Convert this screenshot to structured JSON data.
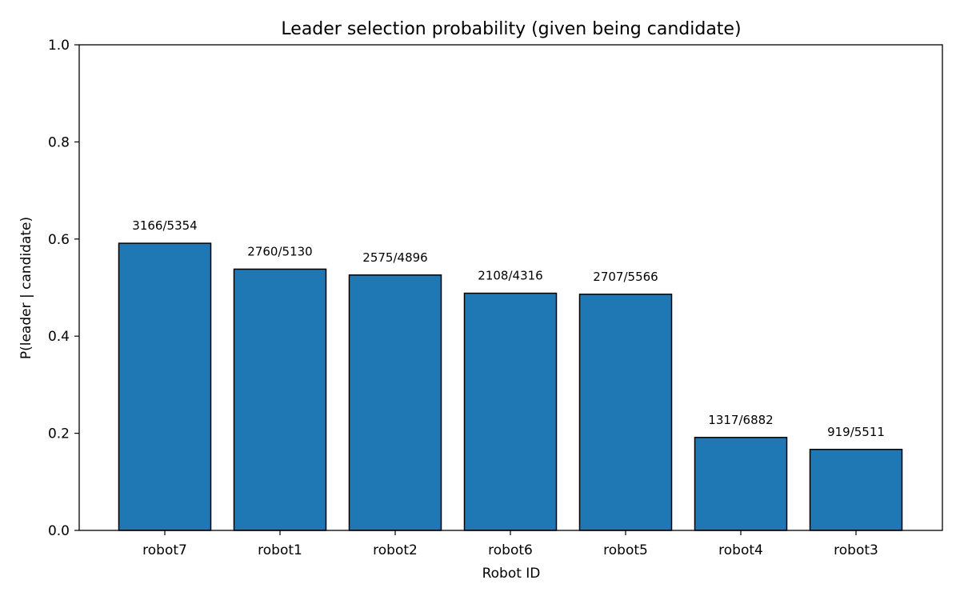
{
  "chart_data": {
    "type": "bar",
    "title": "Leader selection probability (given being candidate)",
    "xlabel": "Robot ID",
    "ylabel": "P(leader | candidate)",
    "ylim": [
      0,
      1.0
    ],
    "yticks": [
      "0.0",
      "0.2",
      "0.4",
      "0.6",
      "0.8",
      "1.0"
    ],
    "categories": [
      "robot7",
      "robot1",
      "robot2",
      "robot6",
      "robot5",
      "robot4",
      "robot3"
    ],
    "values": [
      0.5913,
      0.538,
      0.5259,
      0.4884,
      0.4863,
      0.1914,
      0.1668
    ],
    "labels": [
      "3166/5354",
      "2760/5130",
      "2575/4896",
      "2108/4316",
      "2707/5566",
      "1317/6882",
      "919/5511"
    ],
    "grid": false,
    "bar_color": "#1f77b4",
    "edge_color": "#000000"
  }
}
